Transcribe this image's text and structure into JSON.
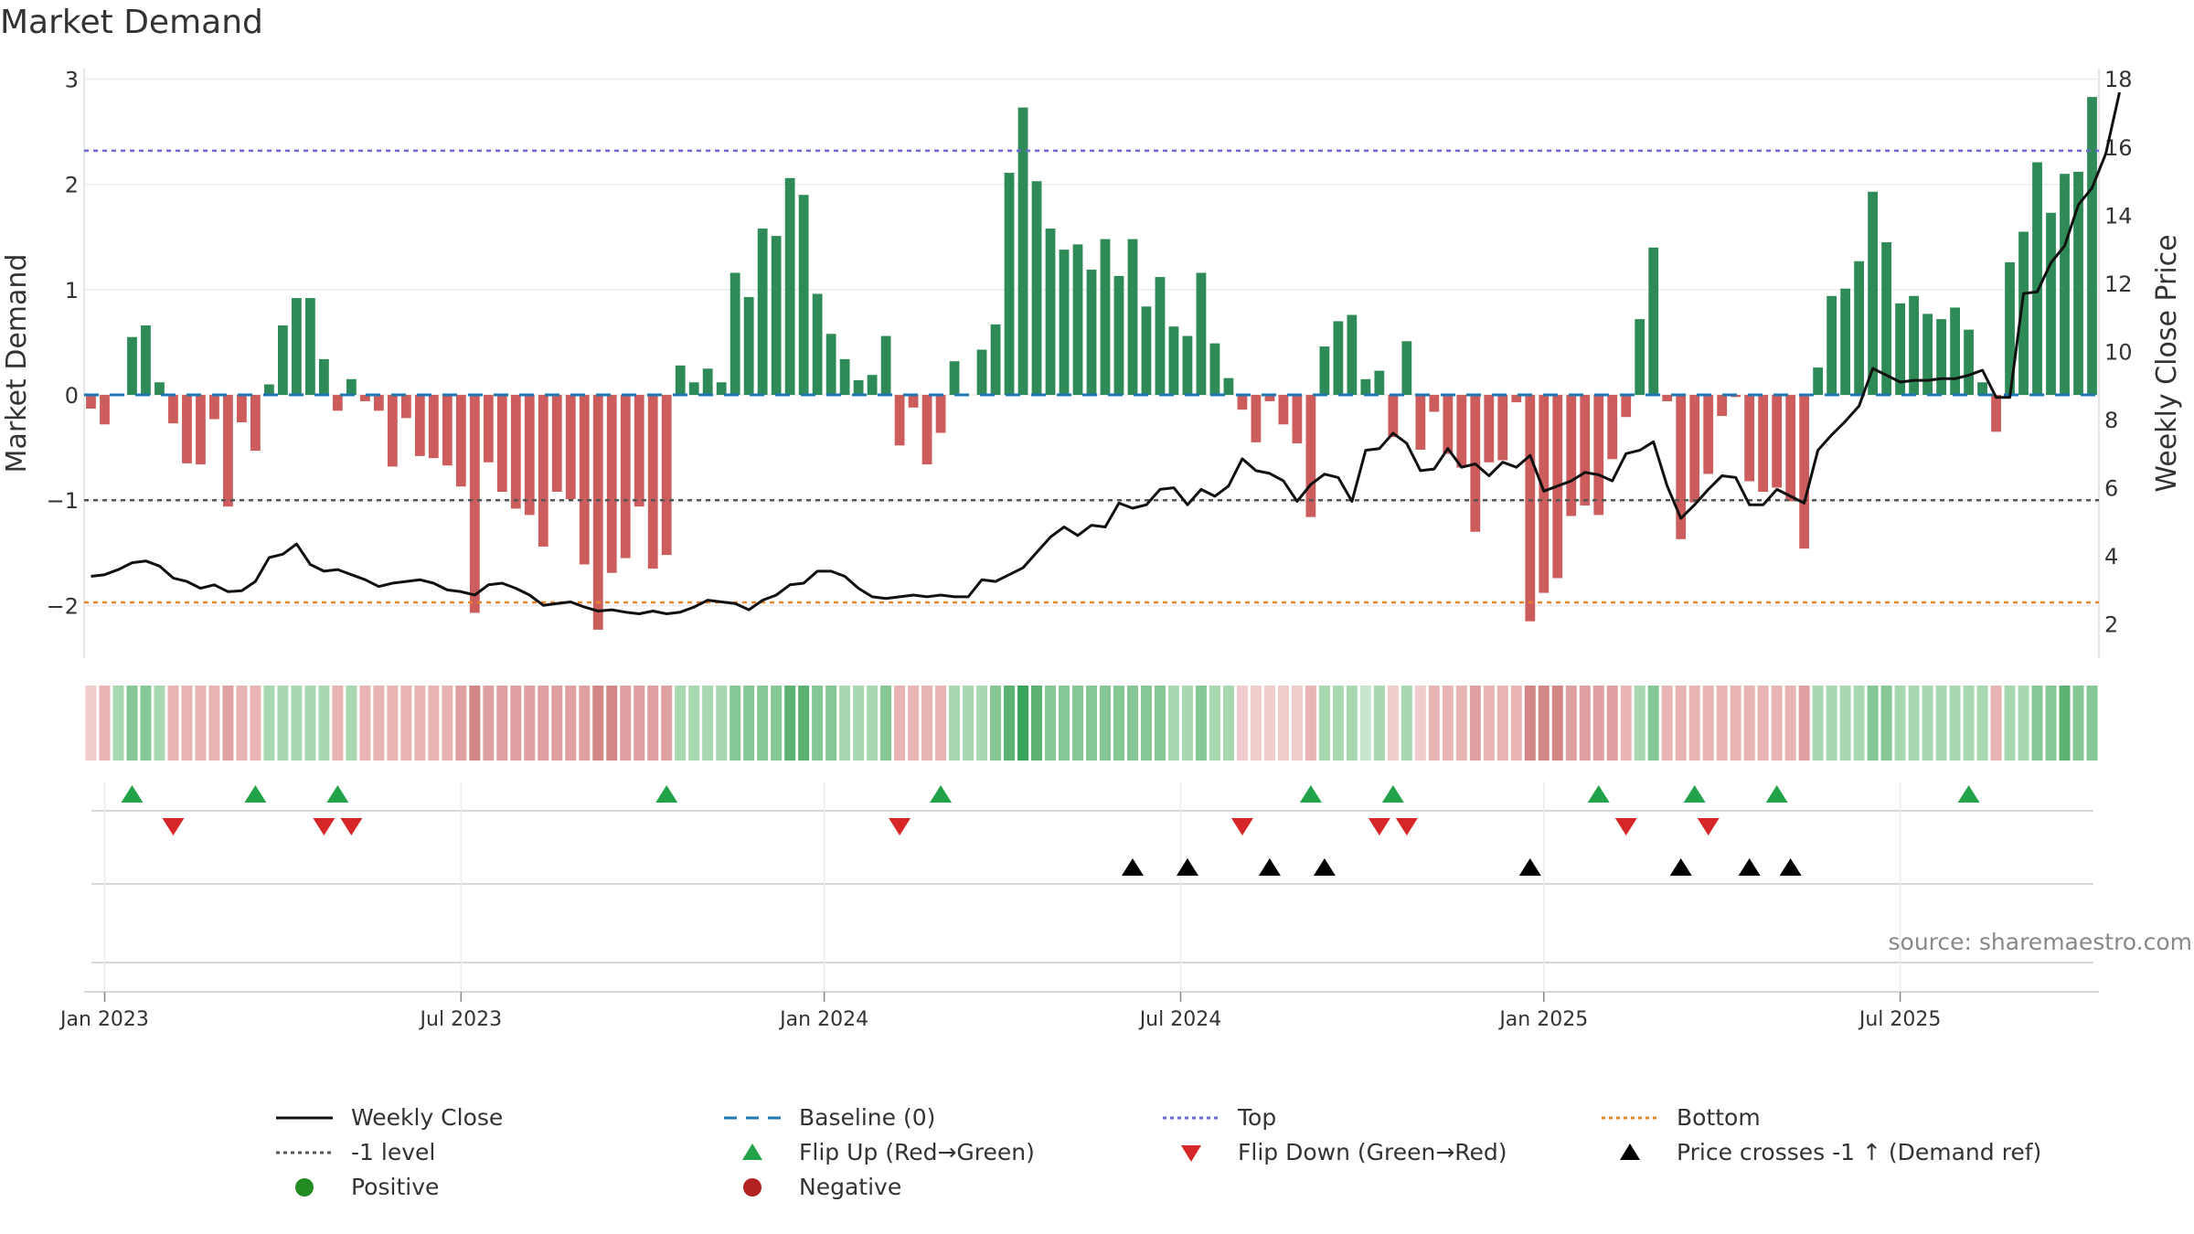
{
  "title": "Market Demand",
  "source": "source: sharemaestro.com",
  "colors": {
    "green": "#2e8b57",
    "red": "#cd5c5c",
    "close": "#111111",
    "top": "#6a6ad0",
    "minus1": "#555555",
    "bottom": "#e8852a",
    "baseline": "#1f77b4",
    "flipUp": "#22a34a",
    "flipDown": "#d62728",
    "cross": "#000000",
    "positive": "#228b22",
    "negative": "#b22222"
  },
  "chart_data": {
    "type": "bar",
    "title": "Market Demand",
    "ylabel": "Market Demand",
    "y2label": "Weekly Close Price",
    "ylim": [
      -2.5,
      3.1
    ],
    "y2lim": [
      1.0,
      18.3
    ],
    "yticks": [
      -2,
      -1,
      0,
      1,
      2,
      3
    ],
    "y2ticks": [
      2,
      4,
      6,
      8,
      10,
      12,
      14,
      16,
      18
    ],
    "xticks": [
      {
        "label": "Jan 2023",
        "week": 1
      },
      {
        "label": "Jul 2023",
        "week": 27
      },
      {
        "label": "Jan 2024",
        "week": 53.5
      },
      {
        "label": "Jul 2024",
        "week": 79.5
      },
      {
        "label": "Jan 2025",
        "week": 106
      },
      {
        "label": "Jul 2025",
        "week": 132
      }
    ],
    "levels": {
      "top": 2.32,
      "minus1": -1.0,
      "bottom": -1.97,
      "baseline": 0
    },
    "demand": [
      -0.13,
      -0.28,
      0,
      0.55,
      0.66,
      0.12,
      -0.27,
      -0.65,
      -0.66,
      -0.23,
      -1.06,
      -0.26,
      -0.53,
      0.1,
      0.66,
      0.92,
      0.92,
      0.34,
      -0.15,
      0.15,
      -0.06,
      -0.15,
      -0.68,
      -0.22,
      -0.58,
      -0.6,
      -0.67,
      -0.87,
      -2.07,
      -0.64,
      -0.92,
      -1.08,
      -1.14,
      -1.44,
      -0.92,
      -0.99,
      -1.61,
      -2.23,
      -1.69,
      -1.55,
      -1.06,
      -1.65,
      -1.52,
      0.28,
      0.12,
      0.25,
      0.12,
      1.16,
      0.93,
      1.58,
      1.51,
      2.06,
      1.9,
      0.96,
      0.58,
      0.34,
      0.14,
      0.19,
      0.56,
      -0.48,
      -0.12,
      -0.66,
      -0.36,
      0.32,
      0,
      0.43,
      0.67,
      2.11,
      2.73,
      2.03,
      1.58,
      1.38,
      1.43,
      1.19,
      1.48,
      1.13,
      1.48,
      0.84,
      1.12,
      0.65,
      0.56,
      1.16,
      0.49,
      0.16,
      -0.14,
      -0.45,
      -0.06,
      -0.28,
      -0.46,
      -1.16,
      0.46,
      0.7,
      0.76,
      0.15,
      0.23,
      -0.4,
      0.51,
      -0.52,
      -0.16,
      -0.56,
      -0.69,
      -1.3,
      -0.64,
      -0.62,
      -0.07,
      -2.15,
      -1.88,
      -1.74,
      -1.15,
      -1.05,
      -1.14,
      -0.61,
      -0.21,
      0.72,
      1.4,
      -0.06,
      -1.37,
      -1.02,
      -0.75,
      -0.2,
      -0.02,
      -0.82,
      -0.92,
      -0.88,
      -1.01,
      -1.46,
      0.26,
      0.94,
      1.01,
      1.27,
      1.93,
      1.45,
      0.87,
      0.94,
      0.77,
      0.72,
      0.83,
      0.62,
      0.12,
      -0.35,
      1.26,
      1.55,
      2.21,
      1.73,
      2.1,
      2.12,
      2.83
    ],
    "close": [
      3.4,
      3.45,
      3.6,
      3.8,
      3.85,
      3.7,
      3.35,
      3.25,
      3.05,
      3.15,
      2.95,
      2.98,
      3.25,
      3.95,
      4.05,
      4.35,
      3.75,
      3.55,
      3.6,
      3.45,
      3.3,
      3.1,
      3.2,
      3.25,
      3.3,
      3.2,
      3.0,
      2.95,
      2.85,
      3.15,
      3.2,
      3.05,
      2.85,
      2.55,
      2.6,
      2.65,
      2.5,
      2.38,
      2.42,
      2.35,
      2.3,
      2.38,
      2.3,
      2.35,
      2.5,
      2.7,
      2.65,
      2.6,
      2.42,
      2.7,
      2.85,
      3.15,
      3.2,
      3.55,
      3.55,
      3.4,
      3.05,
      2.8,
      2.75,
      2.8,
      2.85,
      2.8,
      2.85,
      2.8,
      2.8,
      3.3,
      3.25,
      3.45,
      3.65,
      4.1,
      4.55,
      4.85,
      4.6,
      4.9,
      4.85,
      5.55,
      5.4,
      5.5,
      5.95,
      6.0,
      5.5,
      5.95,
      5.75,
      6.05,
      6.85,
      6.5,
      6.42,
      6.2,
      5.6,
      6.1,
      6.4,
      6.3,
      5.6,
      7.1,
      7.15,
      7.6,
      7.3,
      6.5,
      6.55,
      7.15,
      6.6,
      6.7,
      6.35,
      6.75,
      6.6,
      6.95,
      5.9,
      6.05,
      6.2,
      6.45,
      6.38,
      6.2,
      7.0,
      7.1,
      7.35,
      6.05,
      5.1,
      5.5,
      5.95,
      6.35,
      6.3,
      5.5,
      5.5,
      5.95,
      5.75,
      5.55,
      7.1,
      7.55,
      7.95,
      8.4,
      9.5,
      9.3,
      9.1,
      9.15,
      9.15,
      9.2,
      9.2,
      9.3,
      9.45,
      8.65,
      8.65,
      11.7,
      11.75,
      12.6,
      13.1,
      14.3,
      14.8,
      15.8,
      17.6
    ],
    "flip_up_weeks": [
      3,
      12,
      18,
      42,
      62,
      89,
      95,
      110,
      117,
      123,
      137
    ],
    "flip_down_weeks": [
      6,
      17,
      19,
      59,
      84,
      94,
      96,
      112,
      118
    ],
    "cross_weeks": [
      76,
      80,
      86,
      90,
      105,
      116,
      121,
      124
    ],
    "strip_levels": [
      1,
      2,
      2,
      3,
      3,
      2,
      2,
      2,
      2,
      2,
      3,
      2,
      2,
      2,
      2,
      2,
      2,
      2,
      2,
      2,
      2,
      2,
      2,
      2,
      2,
      2,
      2,
      3,
      4,
      3,
      3,
      3,
      3,
      3,
      3,
      3,
      3,
      4,
      4,
      3,
      3,
      3,
      3,
      2,
      2,
      2,
      2,
      3,
      3,
      3,
      3,
      4,
      4,
      3,
      3,
      2,
      2,
      2,
      3,
      2,
      2,
      2,
      2,
      2,
      2,
      2,
      3,
      4,
      5,
      4,
      3,
      3,
      3,
      3,
      3,
      3,
      3,
      3,
      3,
      2,
      2,
      3,
      2,
      2,
      1,
      1,
      1,
      1,
      1,
      2,
      2,
      2,
      2,
      1,
      2,
      1,
      2,
      1,
      2,
      2,
      2,
      3,
      2,
      2,
      2,
      4,
      4,
      4,
      3,
      3,
      3,
      3,
      2,
      2,
      3,
      2,
      2,
      2,
      2,
      2,
      2,
      2,
      2,
      2,
      2,
      3,
      2,
      2,
      2,
      2,
      3,
      3,
      2,
      2,
      2,
      2,
      2,
      2,
      2,
      2,
      2,
      2,
      3,
      3,
      4,
      3,
      3,
      4,
      5
    ],
    "legend": [
      {
        "label": "Weekly Close",
        "symbol": "line-solid"
      },
      {
        "label": "Baseline (0)",
        "symbol": "line-dash"
      },
      {
        "label": "Top",
        "symbol": "line-dot"
      },
      {
        "label": "Bottom",
        "symbol": "line-dot-orange"
      },
      {
        "label": "-1 level",
        "symbol": "line-dot-gray"
      },
      {
        "label": "Flip Up (Red→Green)",
        "symbol": "triangle-up-green"
      },
      {
        "label": "Flip Down (Green→Red)",
        "symbol": "triangle-down-red"
      },
      {
        "label": "Price crosses -1 ↑ (Demand ref)",
        "symbol": "triangle-up-black"
      },
      {
        "label": "Positive",
        "symbol": "circle-green"
      },
      {
        "label": "Negative",
        "symbol": "circle-red"
      }
    ]
  }
}
